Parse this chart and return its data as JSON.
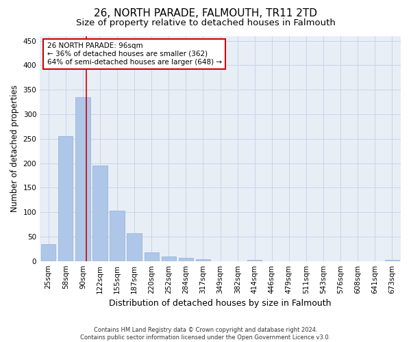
{
  "title": "26, NORTH PARADE, FALMOUTH, TR11 2TD",
  "subtitle": "Size of property relative to detached houses in Falmouth",
  "xlabel": "Distribution of detached houses by size in Falmouth",
  "ylabel": "Number of detached properties",
  "footer_line1": "Contains HM Land Registry data © Crown copyright and database right 2024.",
  "footer_line2": "Contains public sector information licensed under the Open Government Licence v3.0.",
  "categories": [
    "25sqm",
    "58sqm",
    "90sqm",
    "122sqm",
    "155sqm",
    "187sqm",
    "220sqm",
    "252sqm",
    "284sqm",
    "317sqm",
    "349sqm",
    "382sqm",
    "414sqm",
    "446sqm",
    "479sqm",
    "511sqm",
    "543sqm",
    "576sqm",
    "608sqm",
    "641sqm",
    "673sqm"
  ],
  "values": [
    35,
    255,
    335,
    195,
    103,
    57,
    18,
    10,
    7,
    4,
    0,
    0,
    3,
    0,
    0,
    0,
    0,
    0,
    0,
    0,
    3
  ],
  "bar_color": "#aec6e8",
  "bar_edge_color": "#8eb0d8",
  "grid_color": "#c8d4e8",
  "background_color": "#e8eef6",
  "annotation_text": "26 NORTH PARADE: 96sqm\n← 36% of detached houses are smaller (362)\n64% of semi-detached houses are larger (648) →",
  "annotation_box_color": "#ffffff",
  "annotation_box_edge_color": "#cc0000",
  "vline_color": "#cc0000",
  "ylim": [
    0,
    460
  ],
  "yticks": [
    0,
    50,
    100,
    150,
    200,
    250,
    300,
    350,
    400,
    450
  ],
  "title_fontsize": 11,
  "subtitle_fontsize": 9.5,
  "xlabel_fontsize": 9,
  "ylabel_fontsize": 8.5,
  "tick_fontsize": 7.5,
  "annotation_fontsize": 7.5,
  "footer_fontsize": 6
}
